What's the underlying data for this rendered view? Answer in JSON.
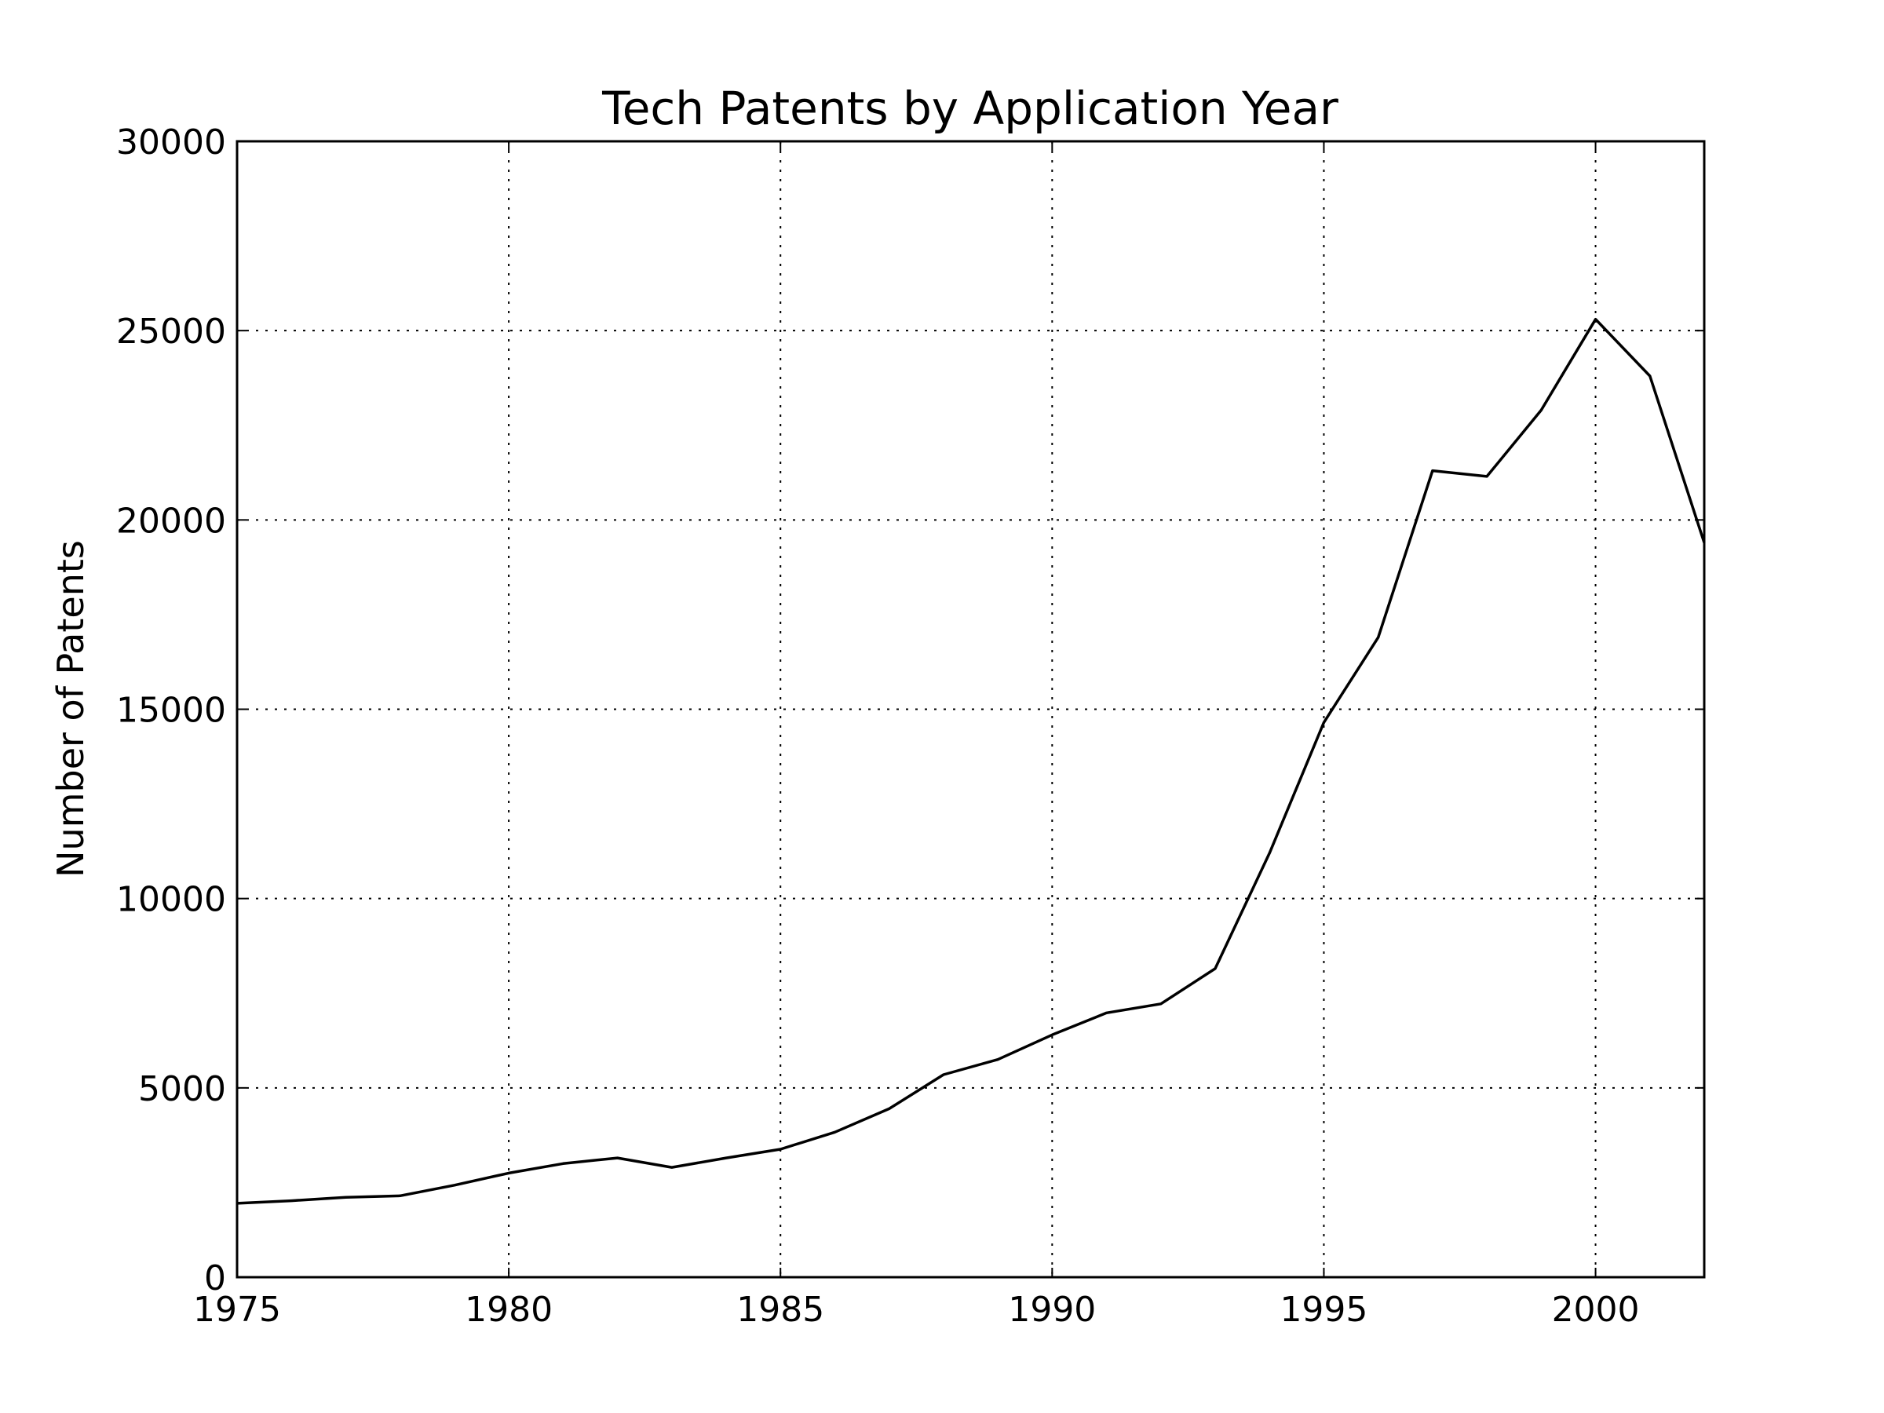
{
  "chart_data": {
    "type": "line",
    "title": "Tech Patents by Application Year",
    "xlabel": "",
    "ylabel": "Number of Patents",
    "xlim": [
      1975,
      2002
    ],
    "ylim": [
      0,
      30000
    ],
    "xticks": [
      1975,
      1980,
      1985,
      1990,
      1995,
      2000
    ],
    "yticks": [
      0,
      5000,
      10000,
      15000,
      20000,
      25000,
      30000
    ],
    "grid": true,
    "legend": "none",
    "line_color": "#000000",
    "series": [
      {
        "x": [
          1975,
          1976,
          1977,
          1978,
          1979,
          1980,
          1981,
          1982,
          1983,
          1984,
          1985,
          1986,
          1987,
          1988,
          1989,
          1990,
          1991,
          1992,
          1993,
          1994,
          1995,
          1996,
          1997,
          1998,
          1999,
          2000,
          2001,
          2002
        ],
        "values": [
          1950,
          2020,
          2110,
          2150,
          2430,
          2750,
          3000,
          3150,
          2900,
          3150,
          3380,
          3830,
          4450,
          5350,
          5750,
          6400,
          6980,
          7220,
          8150,
          11200,
          14650,
          16900,
          21300,
          21150,
          22900,
          25300,
          23800,
          19400
        ]
      }
    ]
  }
}
